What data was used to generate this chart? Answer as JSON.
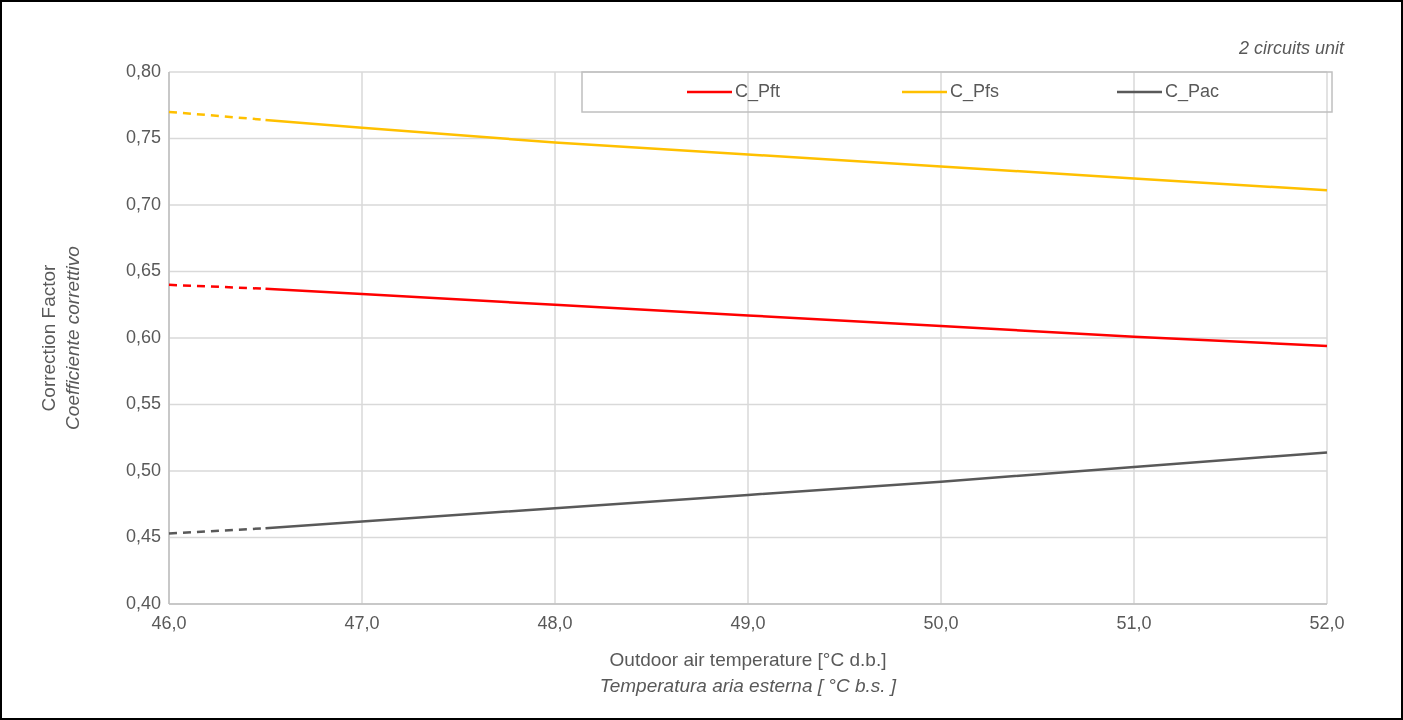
{
  "chart_data": {
    "type": "line",
    "xlabel": "Outdoor air temperature  [°C d.b.]\nTemperatura aria esterna [ °C b.s. ]",
    "ylabel": "Correction Factor\nCoefficiente correttivo",
    "annotations": [
      "2 circuits unit"
    ],
    "xlim": [
      46,
      52
    ],
    "xticks": [
      {
        "value": 46,
        "label": "46,0"
      },
      {
        "value": 47,
        "label": "47,0"
      },
      {
        "value": 48,
        "label": "48,0"
      },
      {
        "value": 49,
        "label": "49,0"
      },
      {
        "value": 50,
        "label": "50,0"
      },
      {
        "value": 51,
        "label": "51,0"
      },
      {
        "value": 52,
        "label": "52,0"
      }
    ],
    "ylim": [
      0.4,
      0.8
    ],
    "yticks": [
      {
        "value": 0.4,
        "label": "0,40"
      },
      {
        "value": 0.45,
        "label": "0,45"
      },
      {
        "value": 0.5,
        "label": "0,50"
      },
      {
        "value": 0.55,
        "label": "0,55"
      },
      {
        "value": 0.6,
        "label": "0,60"
      },
      {
        "value": 0.65,
        "label": "0,65"
      },
      {
        "value": 0.7,
        "label": "0,70"
      },
      {
        "value": 0.75,
        "label": "0,75"
      },
      {
        "value": 0.8,
        "label": "0,80"
      }
    ],
    "grid": true,
    "legend": "top right",
    "series": [
      {
        "name": "C_Pft",
        "color": "#ff0000",
        "line_style": "solid",
        "x": [
          46.5,
          47,
          48,
          49,
          50,
          51,
          52
        ],
        "values": [
          0.637,
          0.633,
          0.625,
          0.617,
          0.609,
          0.601,
          0.594
        ]
      },
      {
        "name": "C_Pfs",
        "color": "#ffc000",
        "line_style": "solid",
        "x": [
          46.5,
          47,
          48,
          49,
          50,
          51,
          52
        ],
        "values": [
          0.764,
          0.758,
          0.747,
          0.738,
          0.729,
          0.72,
          0.711
        ]
      },
      {
        "name": "C_Pac",
        "color": "#595959",
        "line_style": "solid",
        "x": [
          46.5,
          47,
          48,
          49,
          50,
          51,
          52
        ],
        "values": [
          0.457,
          0.462,
          0.472,
          0.482,
          0.492,
          0.503,
          0.514
        ]
      },
      {
        "color": "#ff0000",
        "line_style": "dashed",
        "x": [
          46,
          46.5
        ],
        "values": [
          0.64,
          0.637
        ]
      },
      {
        "color": "#ffc000",
        "line_style": "dashed",
        "x": [
          46,
          46.5
        ],
        "values": [
          0.77,
          0.764
        ]
      },
      {
        "color": "#595959",
        "line_style": "dashed",
        "x": [
          46,
          46.5
        ],
        "values": [
          0.453,
          0.457
        ]
      }
    ]
  }
}
